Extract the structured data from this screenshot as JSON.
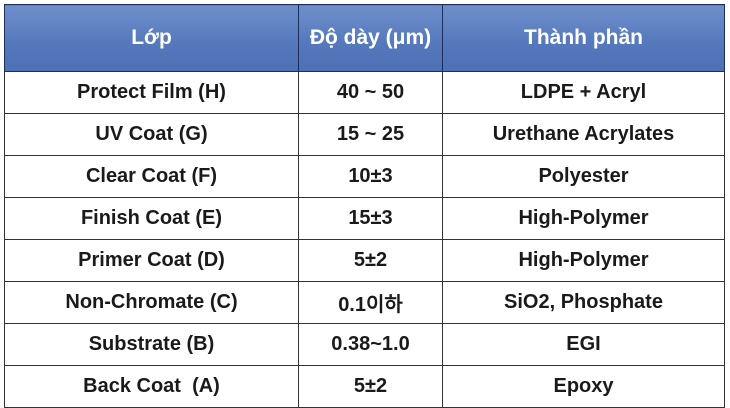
{
  "table": {
    "headers": [
      "Lớp",
      "Độ dày (μm)",
      "Thành phần"
    ],
    "rows": [
      [
        "Protect Film (H)",
        "40 ~ 50",
        "LDPE + Acryl"
      ],
      [
        "UV Coat (G)",
        "15 ~ 25",
        "Urethane Acrylates"
      ],
      [
        "Clear Coat (F)",
        "10±3",
        "Polyester"
      ],
      [
        "Finish Coat (E)",
        "15±3",
        "High-Polymer"
      ],
      [
        "Primer Coat (D)",
        "5±2",
        "High-Polymer"
      ],
      [
        "Non-Chromate (C)",
        "0.1이하",
        "SiO2, Phosphate"
      ],
      [
        "Substrate (B)",
        "0.38~1.0",
        "EGI"
      ],
      [
        "Back Coat  (A)",
        "5±2",
        "Epoxy"
      ]
    ]
  },
  "colors": {
    "header_background": "#5679bd",
    "header_text": "#ffffff",
    "border": "#333333",
    "cell_text": "#1a1a1a"
  }
}
